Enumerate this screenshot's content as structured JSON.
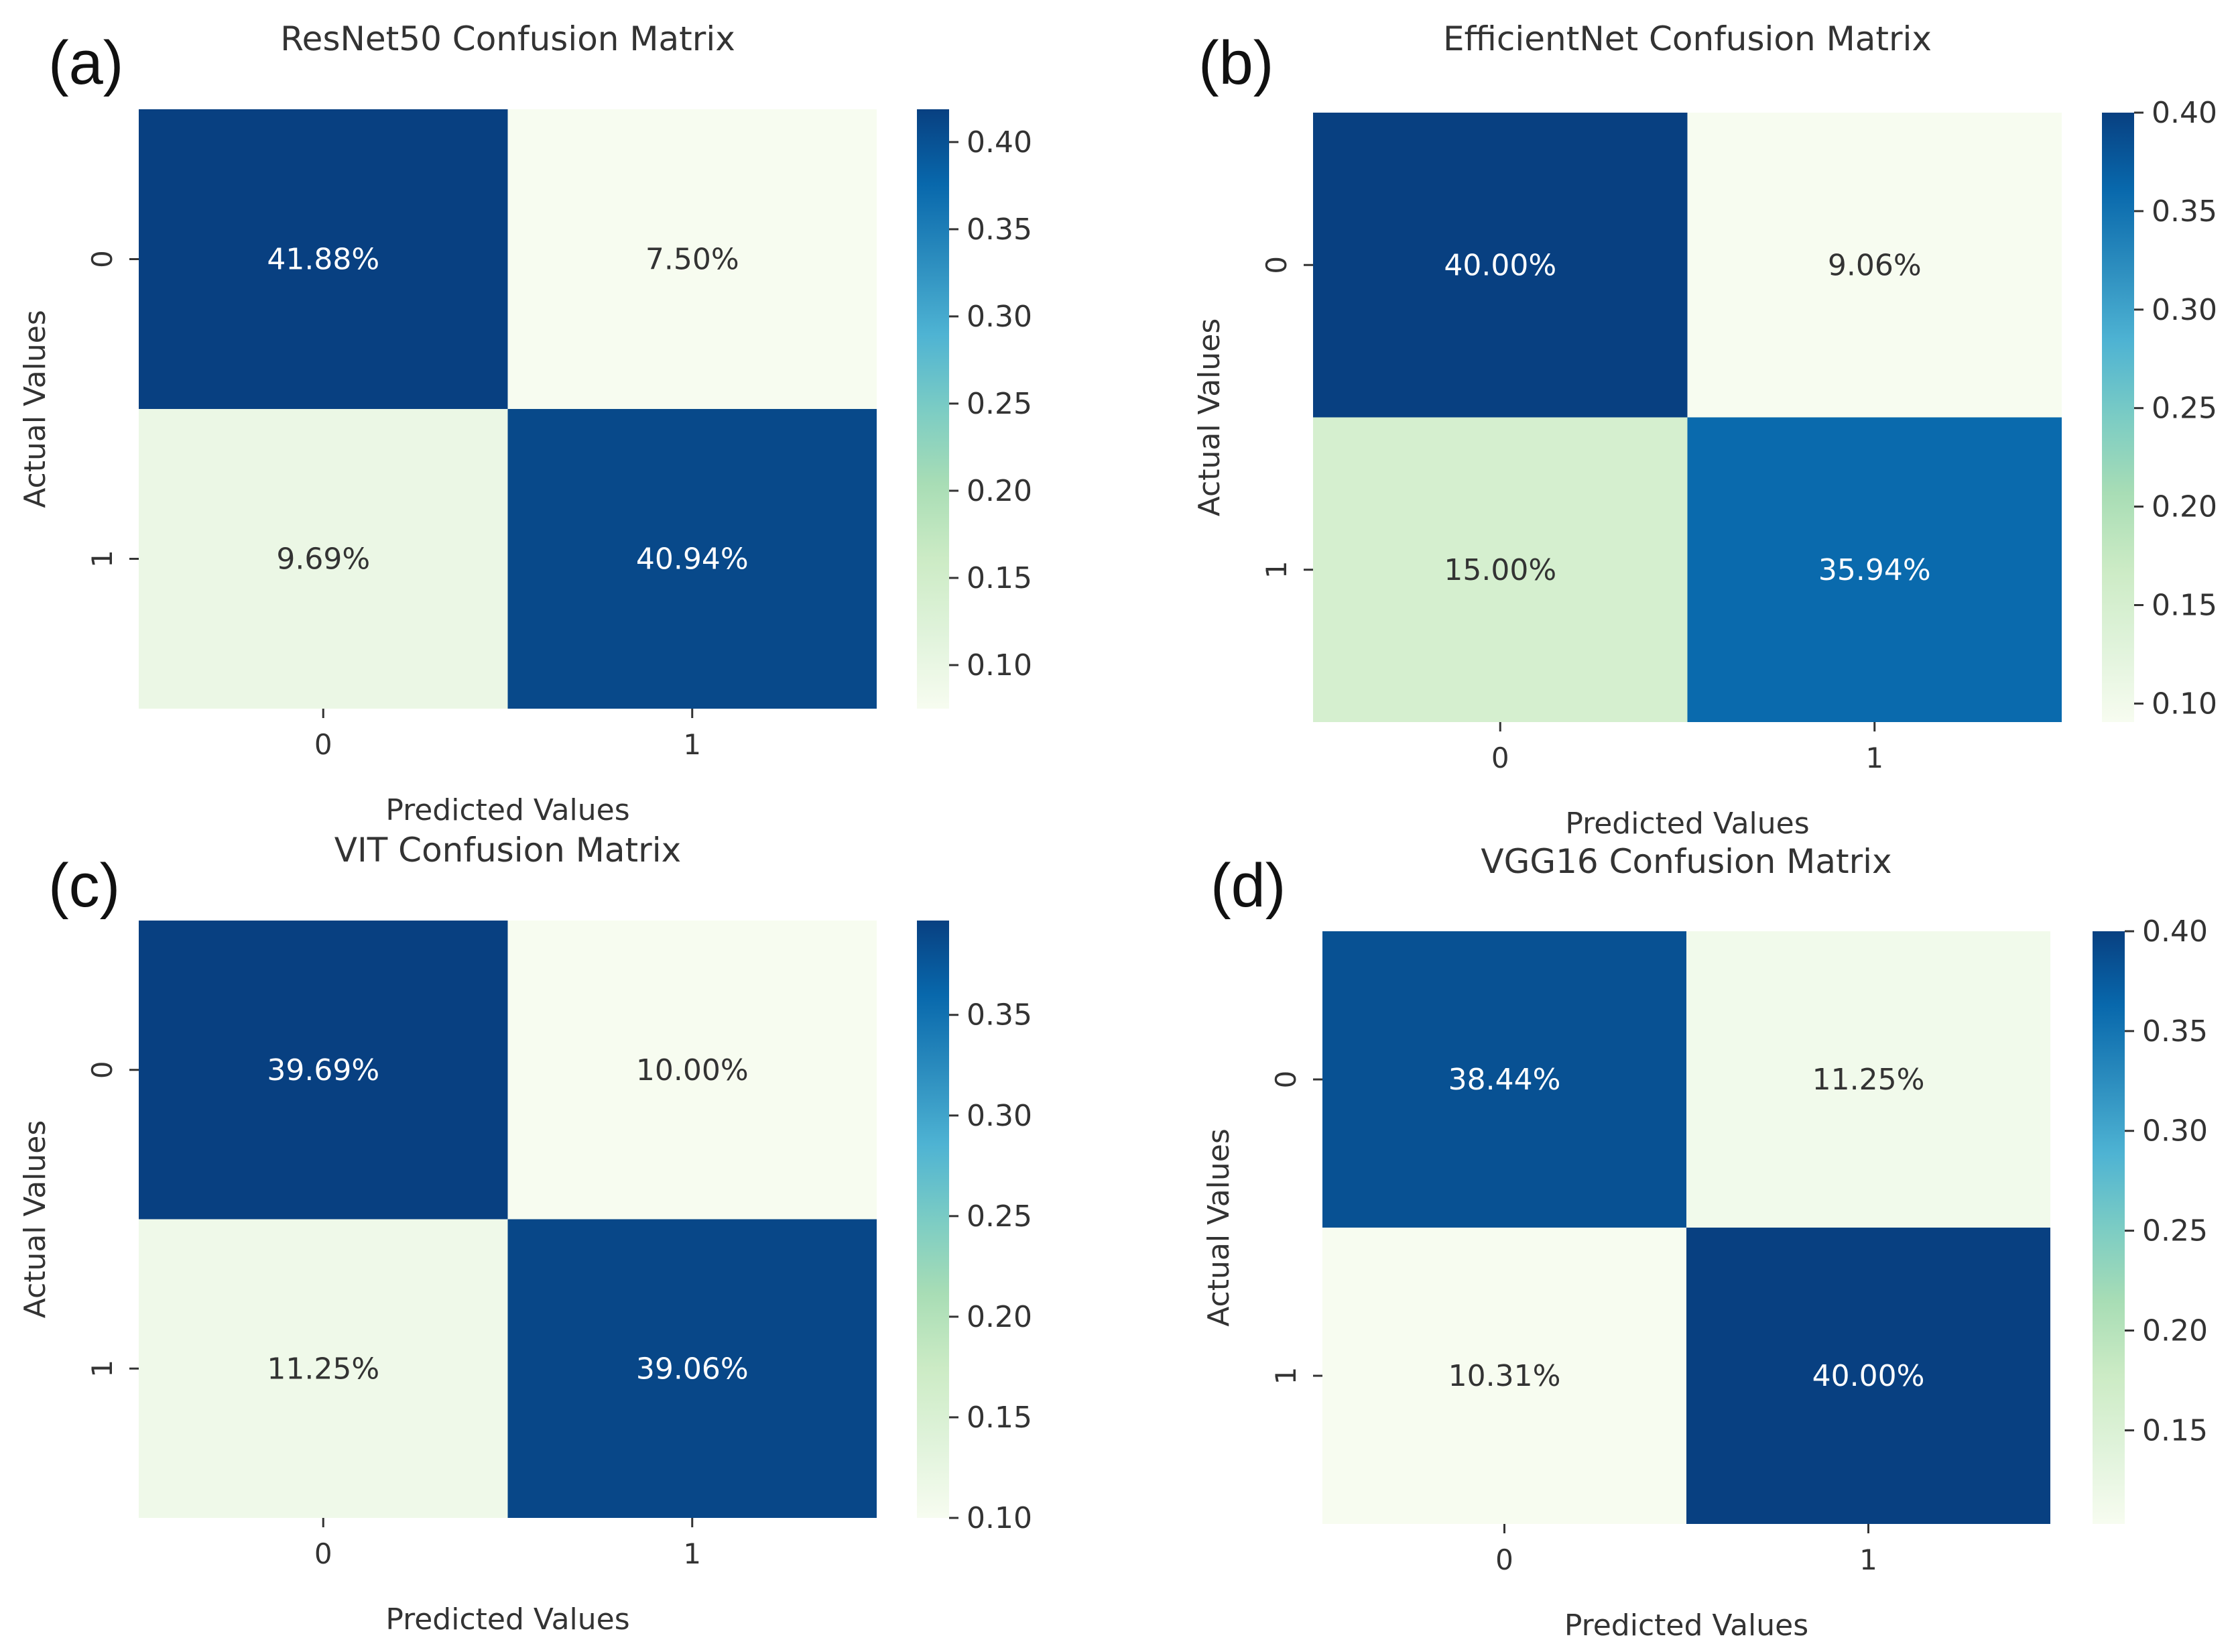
{
  "chart_data": [
    {
      "type": "heatmap",
      "panel": "(a)",
      "title": "ResNet50 Confusion Matrix",
      "xlabel": "Predicted Values",
      "ylabel": "Actual Values",
      "x_categories": [
        "0",
        "1"
      ],
      "y_categories": [
        "0",
        "1"
      ],
      "values": [
        [
          0.4188,
          0.075
        ],
        [
          0.0969,
          0.4094
        ]
      ],
      "cell_labels": [
        [
          "41.88%",
          "7.50%"
        ],
        [
          "9.69%",
          "40.94%"
        ]
      ],
      "colormap": "GnBu",
      "colorbar": {
        "min": 0.075,
        "max": 0.4188,
        "ticks": [
          0.1,
          0.15,
          0.2,
          0.25,
          0.3,
          0.35,
          0.4
        ],
        "tick_labels": [
          "0.10",
          "0.15",
          "0.20",
          "0.25",
          "0.30",
          "0.35",
          "0.40"
        ]
      }
    },
    {
      "type": "heatmap",
      "panel": "(b)",
      "title": "EfficientNet Confusion Matrix",
      "xlabel": "Predicted Values",
      "ylabel": "Actual Values",
      "x_categories": [
        "0",
        "1"
      ],
      "y_categories": [
        "0",
        "1"
      ],
      "values": [
        [
          0.4,
          0.0906
        ],
        [
          0.15,
          0.3594
        ]
      ],
      "cell_labels": [
        [
          "40.00%",
          "9.06%"
        ],
        [
          "15.00%",
          "35.94%"
        ]
      ],
      "colormap": "GnBu",
      "colorbar": {
        "min": 0.0906,
        "max": 0.4,
        "ticks": [
          0.1,
          0.15,
          0.2,
          0.25,
          0.3,
          0.35,
          0.4
        ],
        "tick_labels": [
          "0.10",
          "0.15",
          "0.20",
          "0.25",
          "0.30",
          "0.35",
          "0.40"
        ]
      }
    },
    {
      "type": "heatmap",
      "panel": "(c)",
      "title": "VIT Confusion Matrix",
      "xlabel": "Predicted Values",
      "ylabel": "Actual Values",
      "x_categories": [
        "0",
        "1"
      ],
      "y_categories": [
        "0",
        "1"
      ],
      "values": [
        [
          0.3969,
          0.1
        ],
        [
          0.1125,
          0.3906
        ]
      ],
      "cell_labels": [
        [
          "39.69%",
          "10.00%"
        ],
        [
          "11.25%",
          "39.06%"
        ]
      ],
      "colormap": "GnBu",
      "colorbar": {
        "min": 0.1,
        "max": 0.3969,
        "ticks": [
          0.1,
          0.15,
          0.2,
          0.25,
          0.3,
          0.35
        ],
        "tick_labels": [
          "0.10",
          "0.15",
          "0.20",
          "0.25",
          "0.30",
          "0.35"
        ]
      }
    },
    {
      "type": "heatmap",
      "panel": "(d)",
      "title": "VGG16 Confusion Matrix",
      "xlabel": "Predicted Values",
      "ylabel": "Actual Values",
      "x_categories": [
        "0",
        "1"
      ],
      "y_categories": [
        "0",
        "1"
      ],
      "values": [
        [
          0.3844,
          0.1125
        ],
        [
          0.1031,
          0.4
        ]
      ],
      "cell_labels": [
        [
          "38.44%",
          "11.25%"
        ],
        [
          "10.31%",
          "40.00%"
        ]
      ],
      "colormap": "GnBu",
      "colorbar": {
        "min": 0.1031,
        "max": 0.4,
        "ticks": [
          0.15,
          0.2,
          0.25,
          0.3,
          0.35,
          0.4
        ],
        "tick_labels": [
          "0.15",
          "0.20",
          "0.25",
          "0.30",
          "0.35",
          "0.40"
        ]
      }
    }
  ]
}
